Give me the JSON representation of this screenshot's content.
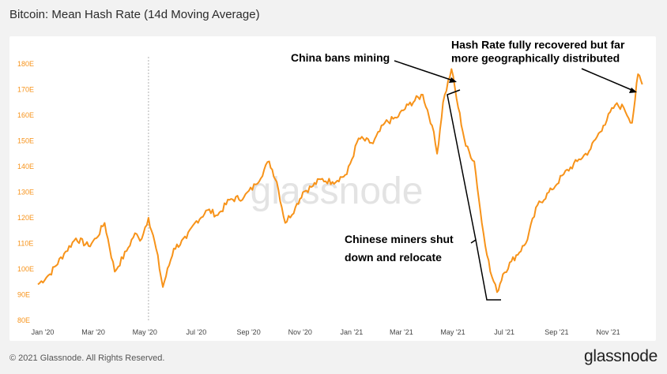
{
  "title": "Bitcoin: Mean Hash Rate (14d Moving Average)",
  "footer": {
    "copyright": "© 2021 Glassnode. All Rights Reserved.",
    "brand": "glassnode"
  },
  "watermark": "glassnode",
  "colors": {
    "series": "#f7931a",
    "annotation": "#000000",
    "axis_text": "#f7931a"
  },
  "annotations": {
    "china_bans": "China bans mining",
    "recovered_line1": "Hash Rate fully recovered but far",
    "recovered_line2": "more geographically distributed",
    "relocate_line1": "Chinese miners shut",
    "relocate_line2": "down and relocate"
  },
  "chart_data": {
    "type": "line",
    "title": "Bitcoin: Mean Hash Rate (14d Moving Average)",
    "xlabel": "",
    "ylabel": "",
    "y_ticks": [
      "80E",
      "90E",
      "100E",
      "110E",
      "120E",
      "130E",
      "140E",
      "150E",
      "160E",
      "170E",
      "180E"
    ],
    "x_ticks": [
      "Jan '20",
      "Mar '20",
      "May '20",
      "Jul '20",
      "Sep '20",
      "Nov '20",
      "Jan '21",
      "Mar '21",
      "May '21",
      "Jul '21",
      "Sep '21",
      "Nov '21"
    ],
    "ylim": [
      80,
      180
    ],
    "y_unit": "EH/s",
    "grid": false,
    "vertical_marker": "2020-05-11",
    "series": [
      {
        "x": [
          "2020-01-01",
          "2020-01-15",
          "2020-02-01",
          "2020-02-15",
          "2020-03-01",
          "2020-03-10",
          "2020-03-20",
          "2020-04-01",
          "2020-04-15",
          "2020-04-25",
          "2020-05-01",
          "2020-05-11",
          "2020-05-20",
          "2020-05-28",
          "2020-06-10",
          "2020-06-25",
          "2020-07-05",
          "2020-07-20",
          "2020-08-01",
          "2020-08-15",
          "2020-09-01",
          "2020-09-15",
          "2020-10-01",
          "2020-10-10",
          "2020-10-20",
          "2020-11-01",
          "2020-11-10",
          "2020-11-20",
          "2020-12-01",
          "2020-12-15",
          "2021-01-01",
          "2021-01-15",
          "2021-02-01",
          "2021-02-15",
          "2021-03-01",
          "2021-03-15",
          "2021-04-01",
          "2021-04-12",
          "2021-04-18",
          "2021-04-25",
          "2021-05-05",
          "2021-05-13",
          "2021-05-22",
          "2021-06-01",
          "2021-06-10",
          "2021-06-20",
          "2021-06-28",
          "2021-07-05",
          "2021-07-15",
          "2021-08-01",
          "2021-08-15",
          "2021-09-01",
          "2021-09-15",
          "2021-10-01",
          "2021-10-15",
          "2021-11-01",
          "2021-11-15",
          "2021-11-25",
          "2021-12-05",
          "2021-12-12",
          "2021-12-17"
        ],
        "y": [
          94,
          98,
          106,
          112,
          109,
          112,
          118,
          99,
          107,
          114,
          111,
          120,
          108,
          93,
          108,
          112,
          118,
          123,
          121,
          127,
          128,
          133,
          142,
          134,
          118,
          124,
          130,
          132,
          135,
          134,
          137,
          151,
          149,
          157,
          159,
          164,
          168,
          156,
          145,
          165,
          178,
          163,
          148,
          142,
          118,
          99,
          91,
          98,
          103,
          110,
          125,
          131,
          137,
          142,
          146,
          156,
          164,
          163,
          157,
          176,
          172
        ]
      }
    ]
  }
}
